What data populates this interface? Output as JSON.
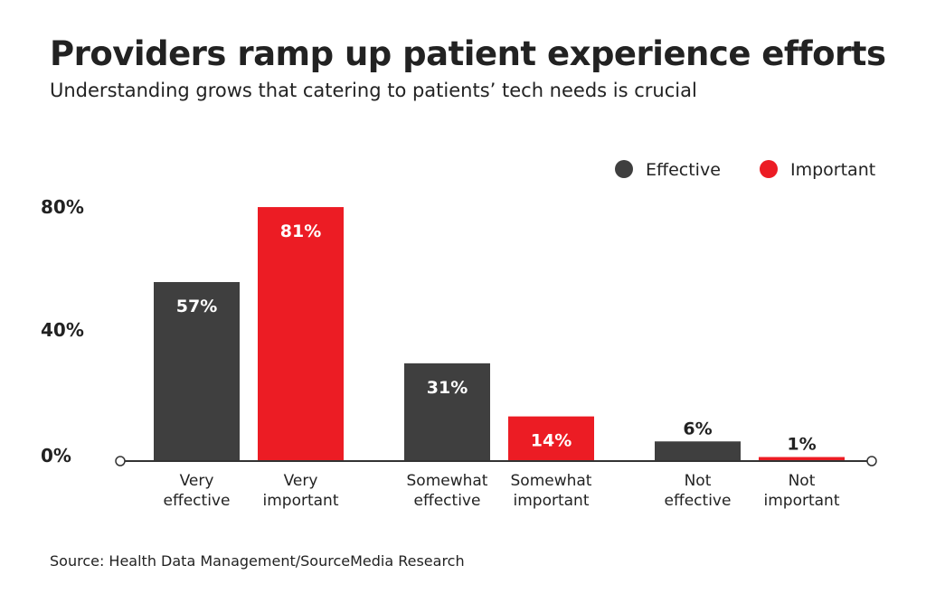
{
  "chart_data": {
    "type": "bar",
    "title": "Providers ramp up patient experience efforts",
    "subtitle": "Understanding grows that catering to patients’ tech needs is crucial",
    "source": "Source: Health Data Management/SourceMedia Research",
    "ylim": [
      0,
      80
    ],
    "yticks": [
      "0%",
      "40%",
      "80%"
    ],
    "ytick_values": [
      0,
      40,
      80
    ],
    "grid": false,
    "legend_position": "top-right",
    "legend": [
      {
        "name": "Effective",
        "color": "#3f3f3f"
      },
      {
        "name": "Important",
        "color": "#ec1c24"
      }
    ],
    "bars": [
      {
        "label": [
          "Very",
          "effective"
        ],
        "value": 57,
        "data_label": "57%",
        "series": 0
      },
      {
        "label": [
          "Very",
          "important"
        ],
        "value": 81,
        "data_label": "81%",
        "series": 1
      },
      {
        "label": [
          "Somewhat",
          "effective"
        ],
        "value": 31,
        "data_label": "31%",
        "series": 0
      },
      {
        "label": [
          "Somewhat",
          "important"
        ],
        "value": 14,
        "data_label": "14%",
        "series": 1
      },
      {
        "label": [
          "Not",
          "effective"
        ],
        "value": 6,
        "data_label": "6%",
        "series": 0
      },
      {
        "label": [
          "Not",
          "important"
        ],
        "value": 1,
        "data_label": "1%",
        "series": 1
      }
    ]
  }
}
